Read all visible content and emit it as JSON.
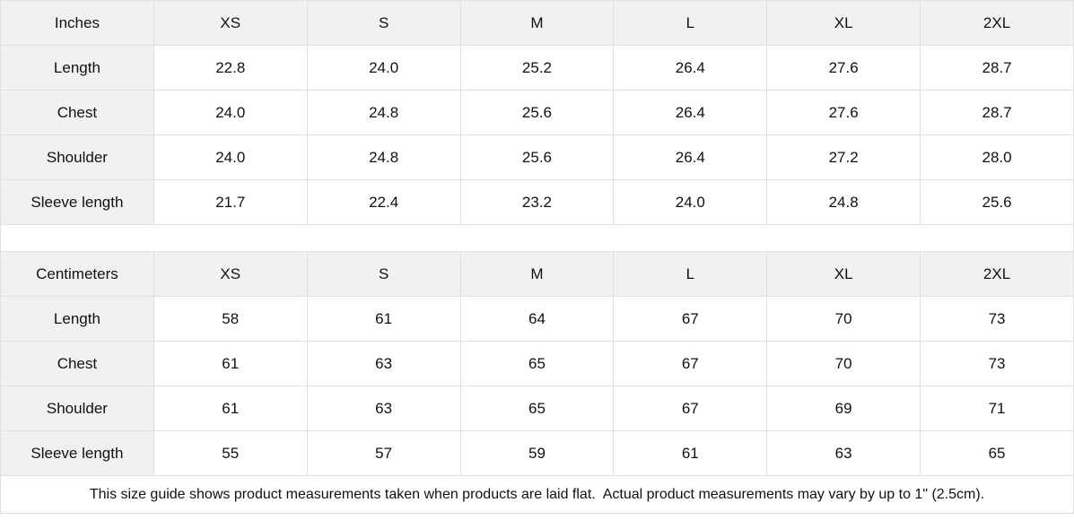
{
  "chart_data": [
    {
      "type": "table",
      "title": "Inches",
      "columns": [
        "Inches",
        "XS",
        "S",
        "M",
        "L",
        "XL",
        "2XL"
      ],
      "rows": [
        [
          "Length",
          "22.8",
          "24.0",
          "25.2",
          "26.4",
          "27.6",
          "28.7"
        ],
        [
          "Chest",
          "24.0",
          "24.8",
          "25.6",
          "26.4",
          "27.6",
          "28.7"
        ],
        [
          "Shoulder",
          "24.0",
          "24.8",
          "25.6",
          "26.4",
          "27.2",
          "28.0"
        ],
        [
          "Sleeve length",
          "21.7",
          "22.4",
          "23.2",
          "24.0",
          "24.8",
          "25.6"
        ]
      ]
    },
    {
      "type": "table",
      "title": "Centimeters",
      "columns": [
        "Centimeters",
        "XS",
        "S",
        "M",
        "L",
        "XL",
        "2XL"
      ],
      "rows": [
        [
          "Length",
          "58",
          "61",
          "64",
          "67",
          "70",
          "73"
        ],
        [
          "Chest",
          "61",
          "63",
          "65",
          "67",
          "70",
          "73"
        ],
        [
          "Shoulder",
          "61",
          "63",
          "65",
          "67",
          "69",
          "71"
        ],
        [
          "Sleeve length",
          "55",
          "57",
          "59",
          "61",
          "63",
          "65"
        ]
      ]
    }
  ],
  "footer": {
    "note": "This size guide shows product measurements taken when products are laid flat.  Actual product measurements may vary by up to 1\" (2.5cm)."
  },
  "colors": {
    "header_bg": "#f1f1f1",
    "border": "#e0e0e0",
    "text": "#111111",
    "background": "#ffffff"
  }
}
